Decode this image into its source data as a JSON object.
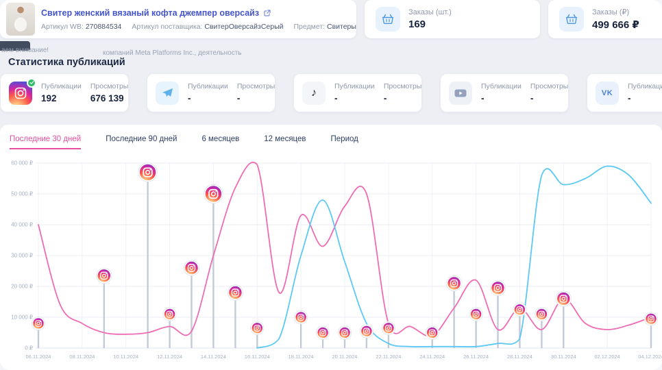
{
  "product": {
    "title": "Свитер женский вязаный кофта джемпер оверсайз",
    "article_wb_label": "Артикул WB:",
    "article_wb": "270884534",
    "supplier_label": "Артикул поставщика:",
    "supplier": "СвитерОверсайзСерый",
    "subject_label": "Предмет:",
    "subject": "Свитеры"
  },
  "kpis": [
    {
      "label": "Заказы (шт.)",
      "value": "169"
    },
    {
      "label": "Заказы (₽)",
      "value": "499 666 ₽"
    }
  ],
  "banner": {
    "line1": "аем внимание!",
    "line2": "компаний Meta Platforms Inc., деятельность"
  },
  "section_title": "Статистика публикаций",
  "socials": [
    {
      "name": "instagram",
      "pub_label": "Публикации",
      "pub_value": "192",
      "views_label": "Просмотры",
      "views_value": "676 139"
    },
    {
      "name": "telegram",
      "pub_label": "Публикации",
      "pub_value": "-",
      "views_label": "Просмотры",
      "views_value": "-"
    },
    {
      "name": "tiktok",
      "pub_label": "Публикации",
      "pub_value": "-",
      "views_label": "Просмотры",
      "views_value": "-"
    },
    {
      "name": "youtube",
      "pub_label": "Публикации",
      "pub_value": "-",
      "views_label": "Просмотры",
      "views_value": "-"
    },
    {
      "name": "vk",
      "pub_label": "Публикации",
      "pub_value": "-"
    }
  ],
  "tabs": [
    {
      "label": "Последние 30 дней",
      "active": true
    },
    {
      "label": "Последние 90 дней",
      "active": false
    },
    {
      "label": "6 месяцев",
      "active": false
    },
    {
      "label": "12 месяцев",
      "active": false
    },
    {
      "label": "Период",
      "active": false
    }
  ],
  "chart_data": {
    "type": "line",
    "title": "",
    "ylim": [
      0,
      60000
    ],
    "ylabel_ticks": [
      "0 ₽",
      "10 000 ₽",
      "20 000 ₽",
      "30 000 ₽",
      "40 000 ₽",
      "50 000 ₽",
      "60 000 ₽"
    ],
    "x_tick_labels": [
      "06.11.2024",
      "08.11.2024",
      "10.11.2024",
      "12.11.2024",
      "14.11.2024",
      "16.11.2024",
      "18.11.2024",
      "20.11.2024",
      "22.11.2024",
      "24.11.2024",
      "26.11.2024",
      "28.11.2024",
      "30.11.2024",
      "02.12.2024",
      "04.12.2024"
    ],
    "dates": [
      "06.11.2024",
      "07.11.2024",
      "08.11.2024",
      "09.11.2024",
      "10.11.2024",
      "11.11.2024",
      "12.11.2024",
      "13.11.2024",
      "14.11.2024",
      "15.11.2024",
      "16.11.2024",
      "17.11.2024",
      "18.11.2024",
      "19.11.2024",
      "20.11.2024",
      "21.11.2024",
      "22.11.2024",
      "23.11.2024",
      "24.11.2024",
      "25.11.2024",
      "26.11.2024",
      "27.11.2024",
      "28.11.2024",
      "29.11.2024",
      "30.11.2024",
      "01.12.2024",
      "02.12.2024",
      "03.12.2024",
      "04.12.2024"
    ],
    "series": [
      {
        "name": "orders-rub",
        "color": "#ef6cb4",
        "values": [
          40000,
          14000,
          8000,
          5000,
          4500,
          5000,
          7000,
          5500,
          30000,
          52000,
          59500,
          18000,
          43000,
          33000,
          46000,
          50000,
          8000,
          7000,
          4000,
          13000,
          22000,
          6000,
          13000,
          6000,
          16000,
          8000,
          6000,
          7500,
          10000
        ]
      },
      {
        "name": "views",
        "color": "#5cc8f4",
        "values": [
          null,
          null,
          null,
          null,
          null,
          null,
          null,
          null,
          null,
          null,
          0,
          3000,
          30000,
          48000,
          28000,
          8000,
          1500,
          500,
          500,
          500,
          500,
          1500,
          3000,
          56000,
          53000,
          55000,
          59000,
          56000,
          47000
        ]
      }
    ],
    "publications": [
      {
        "date": "06.11.2024",
        "value": 8000
      },
      {
        "date": "09.11.2024",
        "value": 23500
      },
      {
        "date": "11.11.2024",
        "value": 57000
      },
      {
        "date": "12.11.2024",
        "value": 11000
      },
      {
        "date": "13.11.2024",
        "value": 26000
      },
      {
        "date": "14.11.2024",
        "value": 50000
      },
      {
        "date": "15.11.2024",
        "value": 18000
      },
      {
        "date": "16.11.2024",
        "value": 6500
      },
      {
        "date": "18.11.2024",
        "value": 10000
      },
      {
        "date": "19.11.2024",
        "value": 5000
      },
      {
        "date": "20.11.2024",
        "value": 5000
      },
      {
        "date": "21.11.2024",
        "value": 5500
      },
      {
        "date": "22.11.2024",
        "value": 6500
      },
      {
        "date": "24.11.2024",
        "value": 5000
      },
      {
        "date": "25.11.2024",
        "value": 21000
      },
      {
        "date": "26.11.2024",
        "value": 11000
      },
      {
        "date": "27.11.2024",
        "value": 19500
      },
      {
        "date": "28.11.2024",
        "value": 12500
      },
      {
        "date": "29.11.2024",
        "value": 11000
      },
      {
        "date": "30.11.2024",
        "value": 16000
      },
      {
        "date": "04.12.2024",
        "value": 9500
      }
    ],
    "grid": true,
    "legend": "none"
  }
}
